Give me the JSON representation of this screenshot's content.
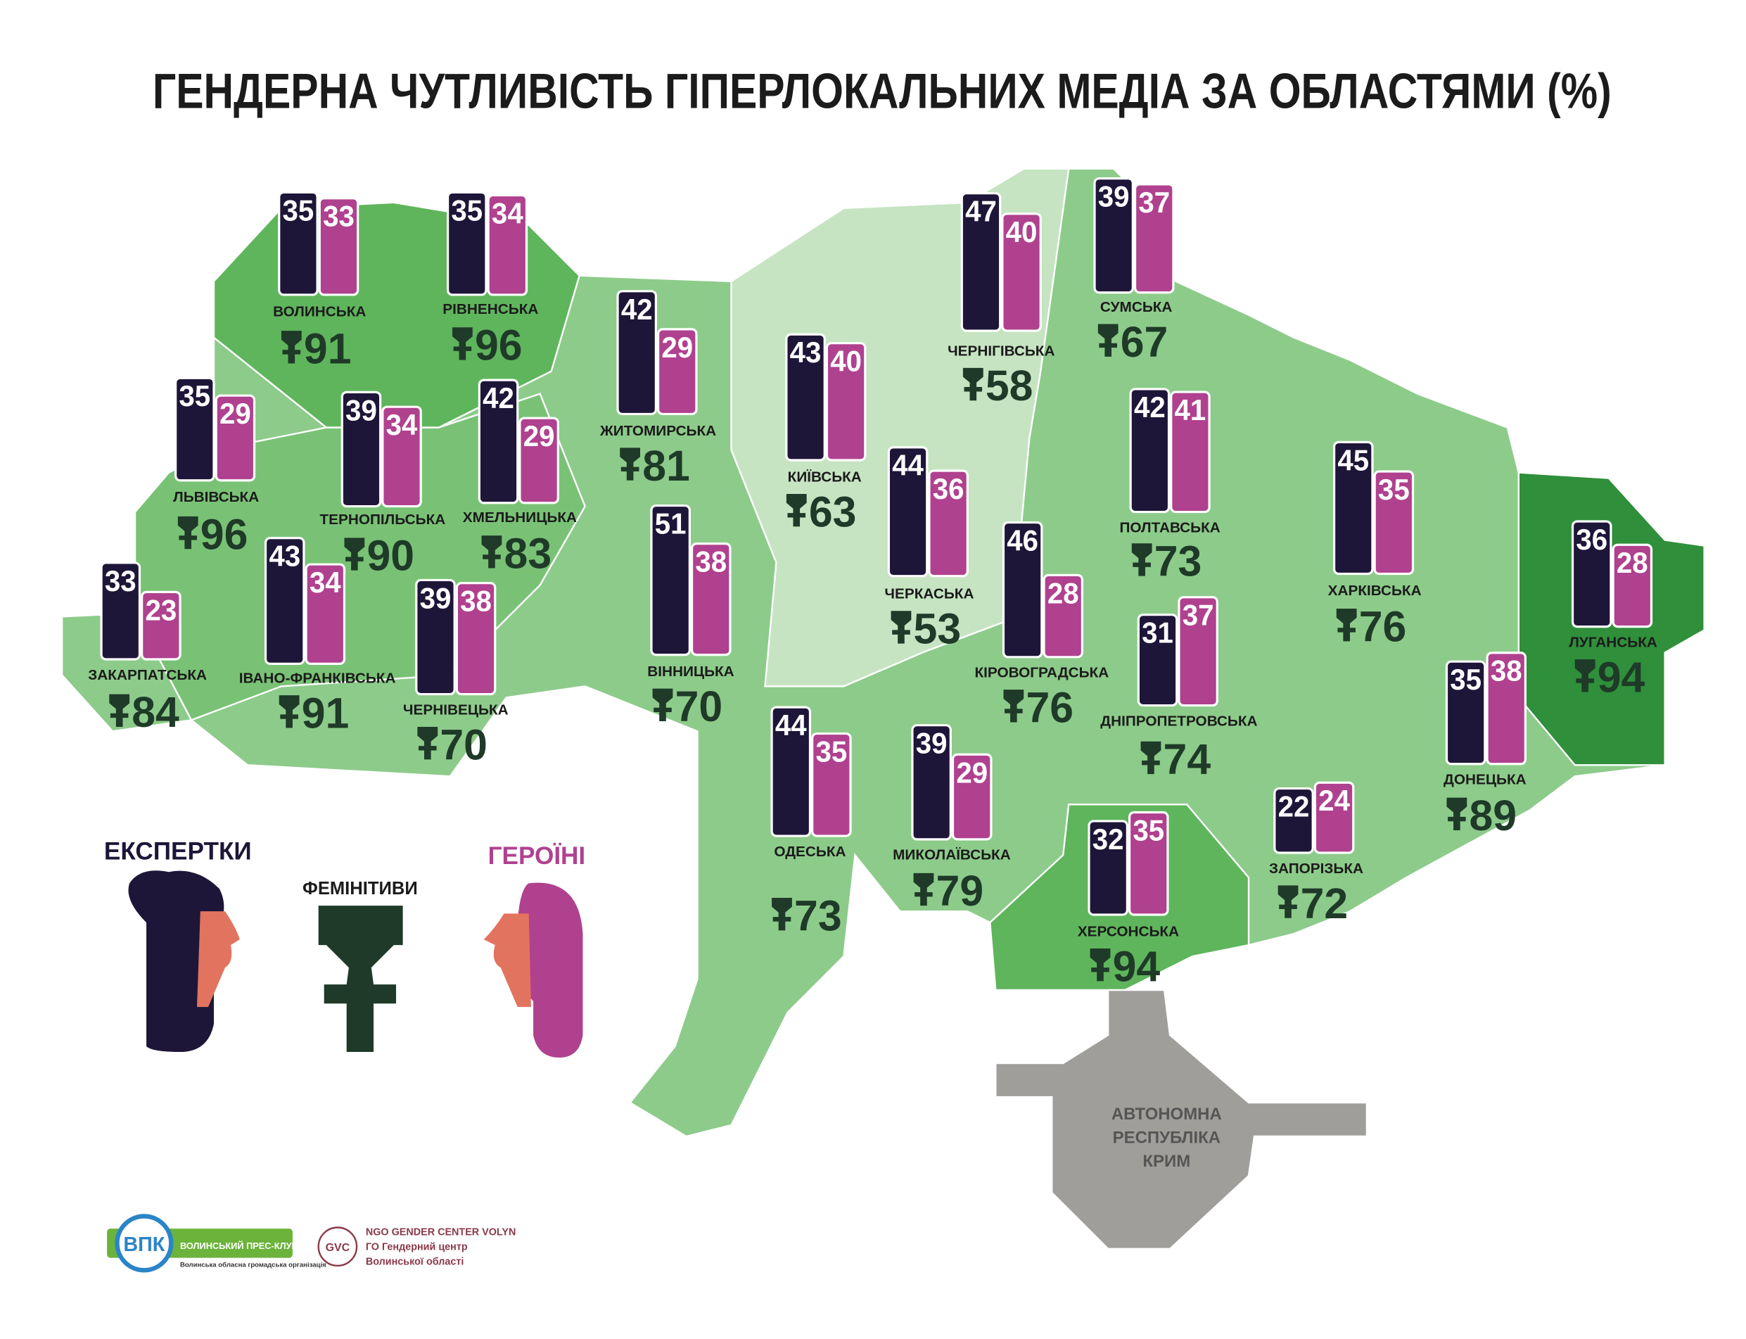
{
  "title": "ГЕНДЕРНА ЧУТЛИВІСТЬ ГІПЕРЛОКАЛЬНИХ МЕДІА ЗА ОБЛАСТЯМИ (%)",
  "regions": [
    {
      "name": "ВОЛИНСЬКА",
      "experts": 35,
      "heroines": 33,
      "feminitives": 91
    },
    {
      "name": "РІВНЕНСЬКА",
      "experts": 35,
      "heroines": 34,
      "feminitives": 96
    },
    {
      "name": "ЛЬВІВСЬКА",
      "experts": 35,
      "heroines": 29,
      "feminitives": 96
    },
    {
      "name": "ТЕРНОПІЛЬСЬКА",
      "experts": 39,
      "heroines": 34,
      "feminitives": 90
    },
    {
      "name": "ХМЕЛЬНИЦЬКА",
      "experts": 42,
      "heroines": 29,
      "feminitives": 83
    },
    {
      "name": "ЖИТОМИРСЬКА",
      "experts": 42,
      "heroines": 29,
      "feminitives": 81
    },
    {
      "name": "КИЇВСЬКА",
      "experts": 43,
      "heroines": 40,
      "feminitives": 63
    },
    {
      "name": "ЧЕРНІГІВСЬКА",
      "experts": 47,
      "heroines": 40,
      "feminitives": 58
    },
    {
      "name": "СУМСЬКА",
      "experts": 39,
      "heroines": 37,
      "feminitives": 67
    },
    {
      "name": "ЧЕРКАСЬКА",
      "experts": 44,
      "heroines": 36,
      "feminitives": 53
    },
    {
      "name": "ВІННИЦЬКА",
      "experts": 51,
      "heroines": 38,
      "feminitives": 70
    },
    {
      "name": "ЗАКАРПАТСЬКА",
      "experts": 33,
      "heroines": 23,
      "feminitives": 84
    },
    {
      "name": "ІВАНО-ФРАНКІВСЬКА",
      "experts": 43,
      "heroines": 34,
      "feminitives": 91
    },
    {
      "name": "ЧЕРНІВЕЦЬКА",
      "experts": 39,
      "heroines": 38,
      "feminitives": 70
    },
    {
      "name": "КІРОВОГРАДСЬКА",
      "experts": 46,
      "heroines": 28,
      "feminitives": 76
    },
    {
      "name": "ПОЛТАВСЬКА",
      "experts": 42,
      "heroines": 41,
      "feminitives": 73
    },
    {
      "name": "ХАРКІВСЬКА",
      "experts": 45,
      "heroines": 35,
      "feminitives": 76
    },
    {
      "name": "ЛУГАНСЬКА",
      "experts": 36,
      "heroines": 28,
      "feminitives": 94
    },
    {
      "name": "ДНІПРОПЕТРОВСЬКА",
      "experts": 31,
      "heroines": 37,
      "feminitives": 74
    },
    {
      "name": "ДОНЕЦЬКА",
      "experts": 35,
      "heroines": 38,
      "feminitives": 89
    },
    {
      "name": "ОДЕСЬКА",
      "experts": 44,
      "heroines": 35,
      "feminitives": 73
    },
    {
      "name": "МИКОЛАЇВСЬКА",
      "experts": 39,
      "heroines": 29,
      "feminitives": 79
    },
    {
      "name": "ЗАПОРІЗЬКА",
      "experts": 22,
      "heroines": 24,
      "feminitives": 72
    },
    {
      "name": "ХЕРСОНСЬКА",
      "experts": 32,
      "heroines": 35,
      "feminitives": 94
    }
  ],
  "crimea": [
    "АВТОНОМНА",
    "РЕСПУБЛІКА",
    "КРИМ"
  ],
  "legend": {
    "experts": "ЕКСПЕРТКИ",
    "feminitives": "ФЕМІНІТИВИ",
    "heroines": "ГЕРОЇНІ"
  },
  "logos": {
    "vpk": "ВПК",
    "vpk_name": "ВОЛИНСЬКИЙ ПРЕС-КЛУБ",
    "vpk_sub": "Волинська обласна громадська організація",
    "gvc": "GVC",
    "gc_en": "NGO GENDER CENTER VOLYN",
    "gc_ua1": "ГО Гендерний центр",
    "gc_ua2": "Волинської області"
  }
}
